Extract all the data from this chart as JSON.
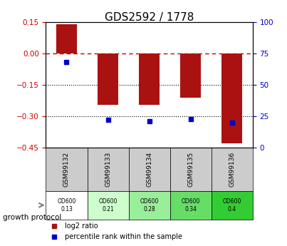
{
  "title": "GDS2592 / 1778",
  "samples": [
    "GSM99132",
    "GSM99133",
    "GSM99134",
    "GSM99135",
    "GSM99136"
  ],
  "log2_ratios": [
    0.14,
    -0.245,
    -0.245,
    -0.21,
    -0.43
  ],
  "percentile_ranks": [
    68,
    22,
    21,
    23,
    20
  ],
  "left_ylim": [
    -0.45,
    0.15
  ],
  "left_yticks": [
    0.15,
    0,
    -0.15,
    -0.3,
    -0.45
  ],
  "right_ylim": [
    0,
    100
  ],
  "right_yticks": [
    0,
    25,
    50,
    75,
    100
  ],
  "bar_color": "#aa1111",
  "dot_color": "#0000cc",
  "zero_line_color": "#cc0000",
  "dotted_line_color": "#000000",
  "growth_protocol_label": "growth protocol",
  "protocol_values": [
    "OD600\n0.13",
    "OD600\n0.21",
    "OD600\n0.28",
    "OD600\n0.34",
    "OD600\n0.4"
  ],
  "protocol_colors": [
    "#ffffff",
    "#ccffcc",
    "#99ee99",
    "#66dd66",
    "#33cc33"
  ],
  "legend_bar_label": "log2 ratio",
  "legend_dot_label": "percentile rank within the sample",
  "title_fontsize": 11,
  "axis_fontsize": 8,
  "tick_fontsize": 7.5
}
